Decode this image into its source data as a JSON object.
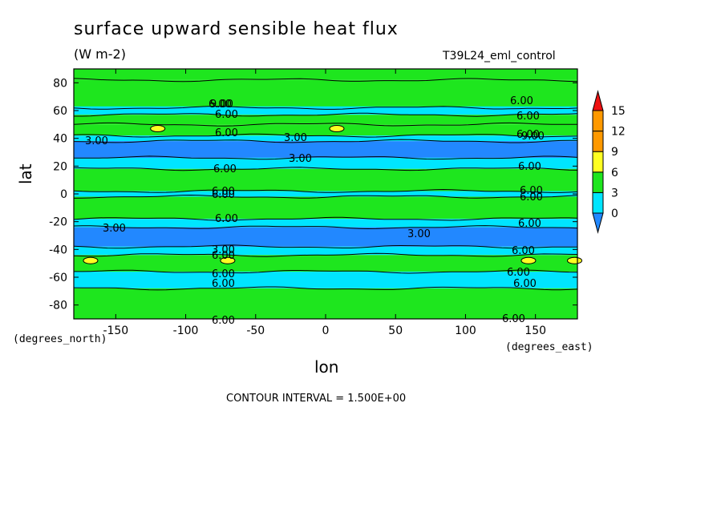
{
  "header": {
    "title": "surface upward sensible heat flux",
    "units": "(W m-2)",
    "run_label": "T39L24_eml_control"
  },
  "footer": {
    "contour_interval": "CONTOUR INTERVAL = 1.500E+00"
  },
  "chart_data": {
    "type": "heatmap",
    "title": "surface upward sensible heat flux",
    "subtitle": "(W m-2)",
    "xlabel": "lon",
    "ylabel": "lat",
    "x_unit_label": "(degrees_east)",
    "y_unit_label": "(degrees_north)",
    "xlim": [
      -180,
      180
    ],
    "ylim": [
      -90,
      90
    ],
    "x_ticks": [
      -150,
      -100,
      -50,
      0,
      50,
      100,
      150
    ],
    "x_tick_labels": [
      "-150",
      "-100",
      "-50",
      "0",
      "50",
      "100",
      "150"
    ],
    "y_ticks": [
      80,
      60,
      40,
      20,
      0,
      -20,
      -40,
      -60,
      -80
    ],
    "y_tick_labels": [
      "80",
      "60",
      "40",
      "20",
      "0",
      "-20",
      "-40",
      "-60",
      "-80"
    ],
    "colorbar": {
      "levels": [
        0,
        3,
        6,
        9,
        12,
        15
      ],
      "tick_labels": [
        "0",
        "3",
        "6",
        "9",
        "12",
        "15"
      ],
      "colors": [
        "#2288ff",
        "#00e5ff",
        "#1ee61e",
        "#ffff22",
        "#ff9900",
        "#ee1111"
      ],
      "extend": "both"
    },
    "bands": [
      {
        "lat": [
          82,
          90
        ],
        "color": "#1ee61e"
      },
      {
        "lat": [
          62,
          82
        ],
        "color": "#1ee61e"
      },
      {
        "lat": [
          57,
          63
        ],
        "color": "#00e5ff"
      },
      {
        "lat": [
          50,
          57
        ],
        "color": "#1ee61e"
      },
      {
        "lat": [
          42,
          50
        ],
        "color": "#1ee61e"
      },
      {
        "lat": [
          38,
          42
        ],
        "color": "#00e5ff"
      },
      {
        "lat": [
          26,
          38
        ],
        "color": "#2288ff"
      },
      {
        "lat": [
          18,
          26
        ],
        "color": "#00e5ff"
      },
      {
        "lat": [
          2,
          18
        ],
        "color": "#1ee61e"
      },
      {
        "lat": [
          -2,
          2
        ],
        "color": "#00e5ff"
      },
      {
        "lat": [
          -18,
          -2
        ],
        "color": "#1ee61e"
      },
      {
        "lat": [
          -24,
          -18
        ],
        "color": "#00e5ff"
      },
      {
        "lat": [
          -38,
          -24
        ],
        "color": "#2288ff"
      },
      {
        "lat": [
          -44,
          -38
        ],
        "color": "#00e5ff"
      },
      {
        "lat": [
          -56,
          -44
        ],
        "color": "#1ee61e"
      },
      {
        "lat": [
          -68,
          -56
        ],
        "color": "#00e5ff"
      },
      {
        "lat": [
          -90,
          -68
        ],
        "color": "#1ee61e"
      }
    ],
    "yellow_spots": [
      {
        "lon": -168,
        "lat": -48
      },
      {
        "lon": -120,
        "lat": 47
      },
      {
        "lon": -70,
        "lat": -48
      },
      {
        "lon": 8,
        "lat": 47
      },
      {
        "lon": 145,
        "lat": -48
      },
      {
        "lon": 178,
        "lat": -48
      }
    ],
    "contour_labels": [
      "6.00",
      "6.00",
      "6.00",
      "3.00",
      "3.00",
      "3.00",
      "6.00",
      "6.00",
      "6.00",
      "6.00",
      "3.00",
      "3.00",
      "3.00",
      "6.00",
      "6.00",
      "6.00",
      "6.00",
      "6.00",
      "6.00",
      "6.00",
      "6.00",
      "6.00",
      "6.00",
      "6.00",
      "6.00",
      "6.00",
      "6.00",
      "6.00",
      "9.00",
      "9.00"
    ]
  }
}
